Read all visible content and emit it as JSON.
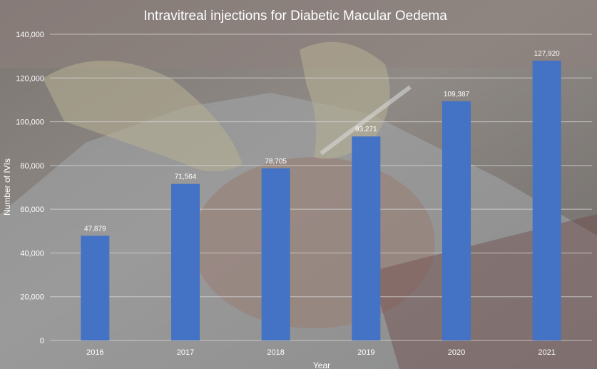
{
  "chart_data": {
    "type": "bar",
    "title": "Intravitreal injections for Diabetic Macular Oedema",
    "xlabel": "Year",
    "ylabel": "Number of IVIs",
    "categories": [
      "2016",
      "2017",
      "2018",
      "2019",
      "2020",
      "2021"
    ],
    "values": [
      47879,
      71564,
      78705,
      93271,
      109387,
      127920
    ],
    "value_labels": [
      "47,879",
      "71,564",
      "78,705",
      "93,271",
      "109,387",
      "127,920"
    ],
    "ylim": [
      0,
      140000
    ],
    "yticks": [
      0,
      20000,
      40000,
      60000,
      80000,
      100000,
      120000,
      140000
    ],
    "ytick_labels": [
      "0",
      "20,000",
      "40,000",
      "60,000",
      "80,000",
      "100,000",
      "120,000",
      "140,000"
    ],
    "grid": true,
    "legend": "none",
    "colors": {
      "bar": "#4472c4",
      "text": "#ffffff",
      "grid": "#d9d9d9",
      "background_overlay": "#8a8a8a"
    },
    "background_image": "photo-eye-injection-procedure"
  }
}
